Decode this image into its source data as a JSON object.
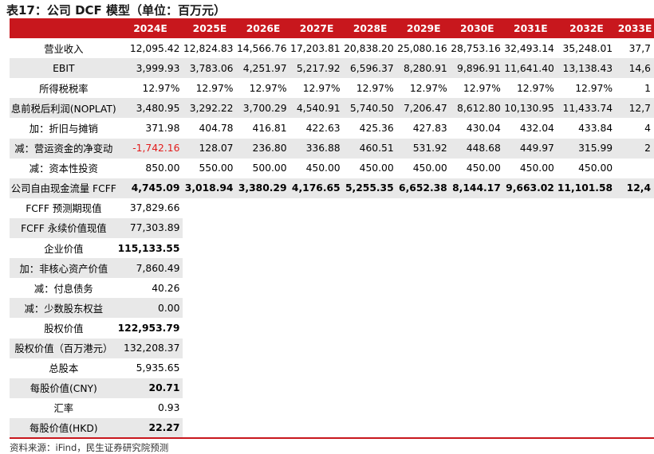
{
  "title": "表17：公司 DCF 模型（单位：百万元）",
  "years": [
    "2024E",
    "2025E",
    "2026E",
    "2027E",
    "2028E",
    "2029E",
    "2030E",
    "2031E",
    "2032E",
    "2033E"
  ],
  "rows": [
    {
      "label": "营业收入",
      "values": [
        "12,095.42",
        "12,824.83",
        "14,566.76",
        "17,203.81",
        "20,838.20",
        "25,080.16",
        "28,753.16",
        "32,493.14",
        "35,248.01",
        "37,7"
      ]
    },
    {
      "label": "EBIT",
      "values": [
        "3,999.93",
        "3,783.06",
        "4,251.97",
        "5,217.92",
        "6,596.37",
        "8,280.91",
        "9,896.91",
        "11,641.40",
        "13,138.43",
        "14,6"
      ]
    },
    {
      "label": "所得税税率",
      "values": [
        "12.97%",
        "12.97%",
        "12.97%",
        "12.97%",
        "12.97%",
        "12.97%",
        "12.97%",
        "12.97%",
        "12.97%",
        "1"
      ]
    },
    {
      "label": "息前税后利润(NOPLAT)",
      "values": [
        "3,480.95",
        "3,292.22",
        "3,700.29",
        "4,540.91",
        "5,740.50",
        "7,206.47",
        "8,612.80",
        "10,130.95",
        "11,433.74",
        "12,7"
      ]
    },
    {
      "label": "加：折旧与摊销",
      "values": [
        "371.98",
        "404.78",
        "416.81",
        "422.63",
        "425.36",
        "427.83",
        "430.04",
        "432.04",
        "433.84",
        "4"
      ]
    },
    {
      "label": "减：营运资金的净变动",
      "values": [
        "-1,742.16",
        "128.07",
        "236.80",
        "336.88",
        "460.51",
        "531.92",
        "448.68",
        "449.97",
        "315.99",
        "2"
      ]
    },
    {
      "label": "减：资本性投资",
      "values": [
        "850.00",
        "550.00",
        "500.00",
        "450.00",
        "450.00",
        "450.00",
        "450.00",
        "450.00",
        "450.00",
        ""
      ]
    },
    {
      "label": "公司自由现金流量 FCFF",
      "values": [
        "4,745.09",
        "3,018.94",
        "3,380.29",
        "4,176.65",
        "5,255.35",
        "6,652.38",
        "8,144.17",
        "9,663.02",
        "11,101.58",
        "12,4"
      ]
    }
  ],
  "summary": [
    {
      "label": "FCFF 预测期现值",
      "value": "37,829.66"
    },
    {
      "label": "FCFF 永续价值现值",
      "value": "77,303.89"
    },
    {
      "label": "企业价值",
      "value": "115,133.55"
    },
    {
      "label": "加：非核心资产价值",
      "value": "7,860.49"
    },
    {
      "label": "减：付息债务",
      "value": "40.26"
    },
    {
      "label": "减：少数股东权益",
      "value": "0.00"
    },
    {
      "label": "股权价值",
      "value": "122,953.79"
    },
    {
      "label": "股权价值（百万港元）",
      "value": "132,208.37"
    },
    {
      "label": "总股本",
      "value": "5,935.65"
    },
    {
      "label": "每股价值(CNY)",
      "value": "20.71"
    },
    {
      "label": "汇率",
      "value": "0.93"
    },
    {
      "label": "每股价值(HKD)",
      "value": "22.27"
    }
  ],
  "source": "资料来源：iFind，民生证券研究院预测",
  "colors": {
    "header_bg": "#c8171d",
    "shade": "#e8e8e8",
    "negative": "#e21b1b"
  }
}
